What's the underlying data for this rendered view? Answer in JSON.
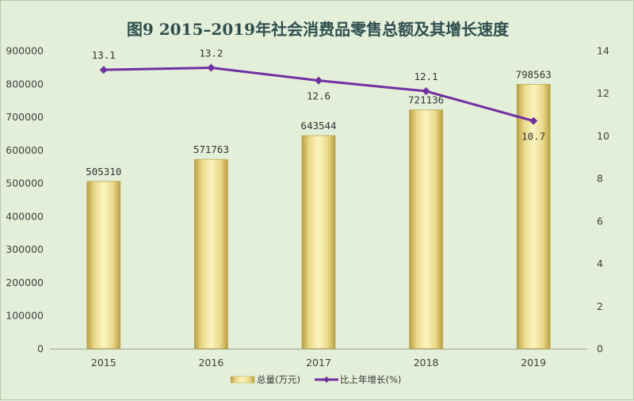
{
  "title": "图9   2015–2019年社会消费品零售总额及其增长速度",
  "colors": {
    "background": "#e4efd9",
    "bar_light": "#fbf4c0",
    "bar_mid": "#ead98a",
    "bar_dark": "#c7ad52",
    "line": "#7030a0"
  },
  "chart_data": {
    "type": "bar",
    "title": "图9   2015–2019年社会消费品零售总额及其增长速度",
    "categories": [
      "2015",
      "2016",
      "2017",
      "2018",
      "2019"
    ],
    "series": [
      {
        "name": "总量(万元)",
        "type": "bar",
        "axis": "left",
        "values": [
          505310,
          571763,
          643544,
          721136,
          798563
        ],
        "labels": [
          "505310",
          "571763",
          "643544",
          "721136",
          "798563"
        ]
      },
      {
        "name": "比上年增长(%)",
        "type": "line",
        "axis": "right",
        "values": [
          13.1,
          13.2,
          12.6,
          12.1,
          10.7
        ],
        "labels": [
          "13.1",
          "13.2",
          "12.6",
          "12.1",
          "10.7"
        ]
      }
    ],
    "y_left": {
      "min": 0,
      "max": 900000,
      "ticks": [
        "0",
        "100000",
        "200000",
        "300000",
        "400000",
        "500000",
        "600000",
        "700000",
        "800000",
        "900000"
      ]
    },
    "y_right": {
      "min": 0,
      "max": 14,
      "ticks": [
        "0",
        "2",
        "4",
        "6",
        "8",
        "10",
        "12",
        "14"
      ]
    },
    "grid": false,
    "legend": "bottom"
  }
}
